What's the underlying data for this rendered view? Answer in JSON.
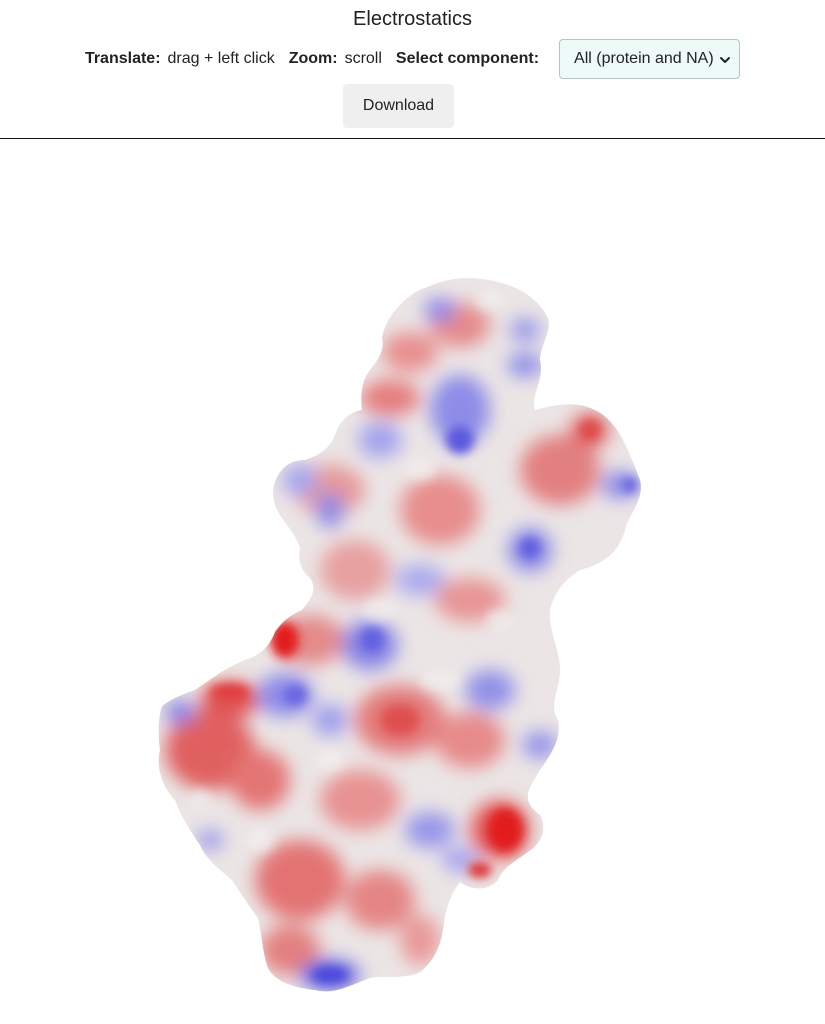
{
  "header": {
    "title": "Electrostatics",
    "translate_label": "Translate:",
    "translate_text": "drag + left click",
    "zoom_label": "Zoom:",
    "zoom_text": "scroll",
    "select_label": "Select component:",
    "select_value": "All (protein and NA)",
    "download_label": "Download"
  },
  "viewer": {
    "surface": "electrostatic-surface",
    "colors": {
      "negative": "#e00f12",
      "neutral": "#eeeeee",
      "positive": "#3a38d8"
    }
  }
}
